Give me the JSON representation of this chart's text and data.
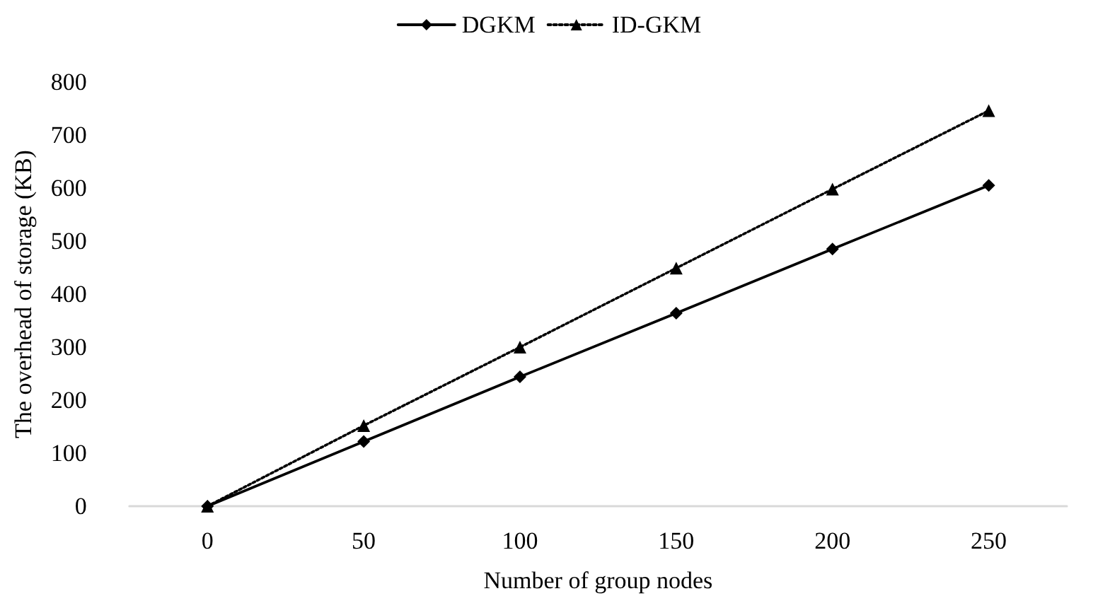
{
  "chart_data": {
    "type": "line",
    "xlabel": "Number of group nodes",
    "ylabel": "The overhead of storage (KB)",
    "categories": [
      "0",
      "50",
      "100",
      "150",
      "200",
      "250"
    ],
    "series": [
      {
        "name": "DGKM",
        "color": "#000000",
        "marker": "diamond",
        "line_style": "solid",
        "values": [
          0,
          122,
          244,
          364,
          485,
          605
        ]
      },
      {
        "name": "ID-GKM",
        "color": "#000000",
        "marker": "triangle",
        "line_style": "dotted",
        "values": [
          0,
          152,
          300,
          449,
          598,
          746
        ]
      }
    ],
    "ylim": [
      0,
      800
    ],
    "yticks": [
      0,
      100,
      200,
      300,
      400,
      500,
      600,
      700,
      800
    ],
    "grid": false,
    "legend": "top"
  }
}
